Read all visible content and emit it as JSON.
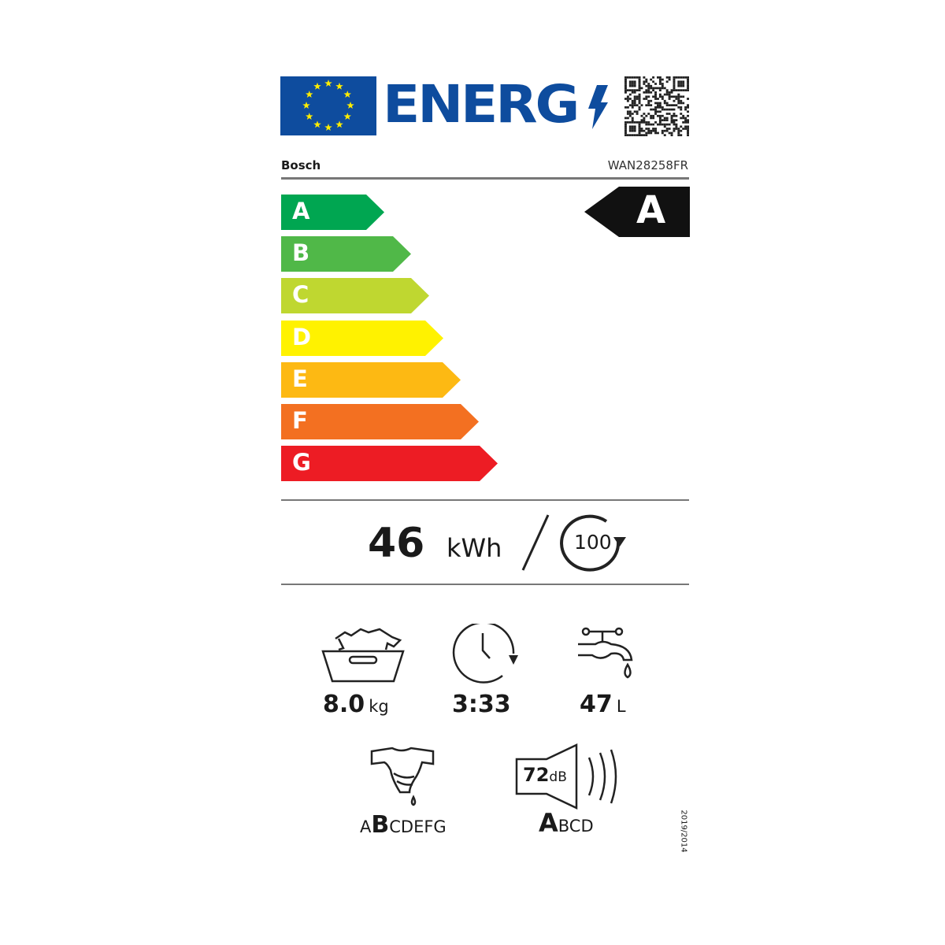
{
  "header": {
    "logo_text": "ENERG",
    "brand": "Bosch",
    "model": "WAN28258FR"
  },
  "scale": [
    {
      "letter": "A",
      "color": "#00a651"
    },
    {
      "letter": "B",
      "color": "#50b848"
    },
    {
      "letter": "C",
      "color": "#bfd730"
    },
    {
      "letter": "D",
      "color": "#fff200"
    },
    {
      "letter": "E",
      "color": "#fdb913"
    },
    {
      "letter": "F",
      "color": "#f37021"
    },
    {
      "letter": "G",
      "color": "#ed1c24"
    }
  ],
  "rating": {
    "class": "A"
  },
  "energy": {
    "value": "46",
    "unit": "kWh",
    "cycles": "100"
  },
  "specs": {
    "capacity": {
      "value": "8.0",
      "unit": "kg"
    },
    "duration": {
      "value": "3:33"
    },
    "water": {
      "value": "47",
      "unit": "L"
    },
    "spin_class": {
      "before": "A",
      "selected": "B",
      "after": "CDEFG"
    },
    "noise": {
      "value": "72",
      "unit": "dB",
      "selected": "A",
      "after": "BCD"
    }
  },
  "regulation": "2019/2014",
  "colors": {
    "eu_blue": "#0e4c9e",
    "star_yellow": "#ffed00"
  }
}
